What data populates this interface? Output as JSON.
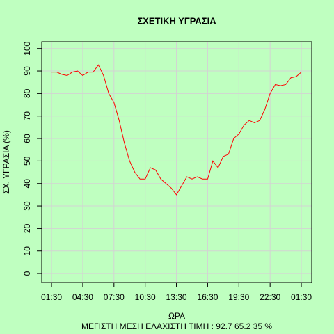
{
  "chart_data": {
    "type": "line",
    "title": "ΣΧΕΤΙΚΗ ΥΓΡΑΣΙΑ",
    "xlabel": "ΩΡΑ",
    "ylabel": "ΣΧ. ΥΓΡΑΣΙΑ (%)",
    "footer": "ΜΕΓΙΣΤΗ ΜΕΣΗ ΕΛΑΧΙΣΤΗ ΤΙΜΗ :  92.7  65.2  35   %",
    "x": [
      0,
      0.5,
      1,
      1.5,
      2,
      2.5,
      3,
      3.5,
      4,
      4.5,
      5,
      5.5,
      6,
      6.5,
      7,
      7.5,
      8,
      8.5,
      9,
      9.5,
      10,
      10.5,
      11,
      11.5,
      12,
      12.5,
      13,
      13.5,
      14,
      14.5,
      15,
      15.5,
      16,
      16.5,
      17,
      17.5,
      18,
      18.5,
      19,
      19.5,
      20,
      20.5,
      21,
      21.5,
      22,
      22.5,
      23,
      23.5,
      24
    ],
    "series": [
      {
        "name": "ΣΧ. ΥΓΡΑΣΙΑ",
        "color": "#ff0000",
        "values": [
          89.5,
          89.5,
          88.5,
          88,
          89.5,
          90,
          88,
          89.5,
          89.5,
          92.7,
          88,
          80,
          76,
          68,
          58,
          50,
          45,
          42,
          42,
          47,
          46,
          42,
          40,
          38,
          35,
          39,
          43,
          42,
          43,
          42,
          42,
          50,
          47,
          52,
          53,
          60,
          62,
          66,
          68,
          67,
          68,
          73,
          80,
          84,
          83.5,
          84,
          87,
          87.5,
          89.5
        ]
      }
    ],
    "xlim": [
      -0.94,
      25
    ],
    "ylim": [
      -4,
      103
    ],
    "xticks": [
      {
        "value": 0,
        "label": "01:30"
      },
      {
        "value": 3,
        "label": "04:30"
      },
      {
        "value": 6,
        "label": "07:30"
      },
      {
        "value": 9,
        "label": "10:30"
      },
      {
        "value": 12,
        "label": "13:30"
      },
      {
        "value": 15,
        "label": "16:30"
      },
      {
        "value": 18,
        "label": "19:30"
      },
      {
        "value": 21,
        "label": "22:30"
      },
      {
        "value": 24,
        "label": "01:30"
      }
    ],
    "yticks": [
      0,
      10,
      20,
      30,
      40,
      50,
      60,
      70,
      80,
      90,
      100
    ],
    "grid": true
  }
}
